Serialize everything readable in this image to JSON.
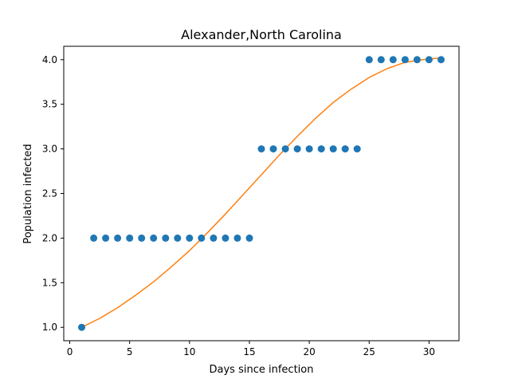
{
  "chart_data": {
    "type": "scatter",
    "title": "Alexander,North Carolina",
    "xlabel": "Days since infection",
    "ylabel": "Population infected",
    "xlim": [
      -0.5,
      32.5
    ],
    "ylim": [
      0.85,
      4.15
    ],
    "xticks": [
      0,
      5,
      10,
      15,
      20,
      25,
      30
    ],
    "yticks": [
      1.0,
      1.5,
      2.0,
      2.5,
      3.0,
      3.5,
      4.0
    ],
    "grid": false,
    "series": [
      {
        "kind": "scatter",
        "color": "#1f77b4",
        "x": [
          1,
          2,
          3,
          4,
          5,
          6,
          7,
          8,
          9,
          10,
          11,
          12,
          13,
          14,
          15,
          16,
          17,
          18,
          19,
          20,
          21,
          22,
          23,
          24,
          25,
          26,
          27,
          28,
          29,
          30,
          31
        ],
        "y": [
          1,
          2,
          2,
          2,
          2,
          2,
          2,
          2,
          2,
          2,
          2,
          2,
          2,
          2,
          2,
          3,
          3,
          3,
          3,
          3,
          3,
          3,
          3,
          3,
          4,
          4,
          4,
          4,
          4,
          4,
          4
        ]
      },
      {
        "kind": "line",
        "color": "#ff7f0e",
        "x": [
          1,
          2.5,
          4,
          5.5,
          7,
          8.5,
          10,
          11.5,
          13,
          14.5,
          16,
          17.5,
          19,
          20.5,
          22,
          23.5,
          25,
          26.5,
          28,
          29.5,
          31
        ],
        "y": [
          1.0,
          1.1,
          1.22,
          1.36,
          1.51,
          1.68,
          1.86,
          2.06,
          2.27,
          2.49,
          2.71,
          2.93,
          3.14,
          3.34,
          3.52,
          3.67,
          3.8,
          3.9,
          3.97,
          4.0,
          4.02
        ]
      }
    ]
  }
}
